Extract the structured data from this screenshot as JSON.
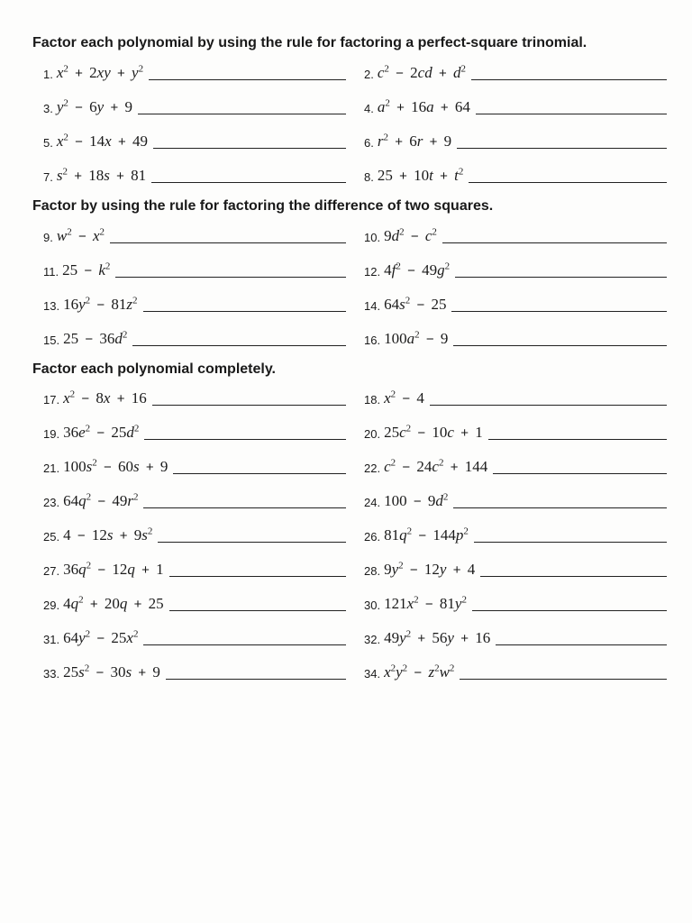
{
  "sections": [
    {
      "heading": "Factor each polynomial by using the rule for factoring a perfect-square trinomial.",
      "problems": [
        {
          "n": "1.",
          "html": "x<sup>2</sup> <span class='op'>+</span> <span class='num'>2</span>xy <span class='op'>+</span> y<sup>2</sup>"
        },
        {
          "n": "2.",
          "html": "c<sup>2</sup> <span class='op'>−</span> <span class='num'>2</span>cd <span class='op'>+</span> d<sup>2</sup>"
        },
        {
          "n": "3.",
          "html": "y<sup>2</sup> <span class='op'>−</span> <span class='num'>6</span>y <span class='op'>+</span> <span class='num'>9</span>"
        },
        {
          "n": "4.",
          "html": "a<sup>2</sup> <span class='op'>+</span> <span class='num'>16</span>a <span class='op'>+</span> <span class='num'>64</span>"
        },
        {
          "n": "5.",
          "html": "x<sup>2</sup> <span class='op'>−</span> <span class='num'>14</span>x <span class='op'>+</span> <span class='num'>49</span>"
        },
        {
          "n": "6.",
          "html": "r<sup>2</sup> <span class='op'>+</span> <span class='num'>6</span>r <span class='op'>+</span> <span class='num'>9</span>"
        },
        {
          "n": "7.",
          "html": "s<sup>2</sup> <span class='op'>+</span> <span class='num'>18</span>s <span class='op'>+</span> <span class='num'>81</span>"
        },
        {
          "n": "8.",
          "html": "<span class='num'>25</span> <span class='op'>+</span> <span class='num'>10</span>t <span class='op'>+</span> t<sup>2</sup>"
        }
      ]
    },
    {
      "heading": "Factor by using the rule for factoring the difference of two squares.",
      "problems": [
        {
          "n": "9.",
          "html": "w<sup>2</sup> <span class='op'>−</span> x<sup>2</sup>"
        },
        {
          "n": "10.",
          "html": "<span class='num'>9</span>d<sup>2</sup> <span class='op'>−</span> c<sup>2</sup>"
        },
        {
          "n": "11.",
          "html": "<span class='num'>25</span> <span class='op'>−</span> k<sup>2</sup>"
        },
        {
          "n": "12.",
          "html": "<span class='num'>4</span>f<sup>2</sup> <span class='op'>−</span> <span class='num'>49</span>g<sup>2</sup>"
        },
        {
          "n": "13.",
          "html": "<span class='num'>16</span>y<sup>2</sup> <span class='op'>−</span> <span class='num'>81</span>z<sup>2</sup>"
        },
        {
          "n": "14.",
          "html": "<span class='num'>64</span>s<sup>2</sup> <span class='op'>−</span> <span class='num'>25</span>"
        },
        {
          "n": "15.",
          "html": "<span class='num'>25</span> <span class='op'>−</span> <span class='num'>36</span>d<sup>2</sup>"
        },
        {
          "n": "16.",
          "html": "<span class='num'>100</span>a<sup>2</sup> <span class='op'>−</span> <span class='num'>9</span>"
        }
      ]
    },
    {
      "heading": "Factor each polynomial completely.",
      "problems": [
        {
          "n": "17.",
          "html": "x<sup>2</sup> <span class='op'>−</span> <span class='num'>8</span>x <span class='op'>+</span> <span class='num'>16</span>"
        },
        {
          "n": "18.",
          "html": "x<sup>2</sup> <span class='op'>−</span> <span class='num'>4</span>"
        },
        {
          "n": "19.",
          "html": "<span class='num'>36</span>e<sup>2</sup> <span class='op'>−</span> <span class='num'>25</span>d<sup>2</sup>"
        },
        {
          "n": "20.",
          "html": "<span class='num'>25</span>c<sup>2</sup> <span class='op'>−</span> <span class='num'>10</span>c <span class='op'>+</span> <span class='num'>1</span>"
        },
        {
          "n": "21.",
          "html": "<span class='num'>100</span>s<sup>2</sup> <span class='op'>−</span> <span class='num'>60</span>s <span class='op'>+</span> <span class='num'>9</span>"
        },
        {
          "n": "22.",
          "html": "c<sup>2</sup> <span class='op'>−</span> <span class='num'>24</span>c<sup>2</sup> <span class='op'>+</span> <span class='num'>144</span>"
        },
        {
          "n": "23.",
          "html": "<span class='num'>64</span>q<sup>2</sup> <span class='op'>−</span> <span class='num'>49</span>r<sup>2</sup>"
        },
        {
          "n": "24.",
          "html": "<span class='num'>100</span> <span class='op'>−</span> <span class='num'>9</span>d<sup>2</sup>"
        },
        {
          "n": "25.",
          "html": "<span class='num'>4</span> <span class='op'>−</span> <span class='num'>12</span>s <span class='op'>+</span> <span class='num'>9</span>s<sup>2</sup>"
        },
        {
          "n": "26.",
          "html": "<span class='num'>81</span>q<sup>2</sup> <span class='op'>−</span> <span class='num'>144</span>p<sup>2</sup>"
        },
        {
          "n": "27.",
          "html": "<span class='num'>36</span>q<sup>2</sup> <span class='op'>−</span> <span class='num'>12</span>q <span class='op'>+</span> <span class='num'>1</span>"
        },
        {
          "n": "28.",
          "html": "<span class='num'>9</span>y<sup>2</sup> <span class='op'>−</span> <span class='num'>12</span>y <span class='op'>+</span> <span class='num'>4</span>"
        },
        {
          "n": "29.",
          "html": "<span class='num'>4</span>q<sup>2</sup> <span class='op'>+</span> <span class='num'>20</span>q <span class='op'>+</span> <span class='num'>25</span>"
        },
        {
          "n": "30.",
          "html": "<span class='num'>121</span>x<sup>2</sup> <span class='op'>−</span> <span class='num'>81</span>y<sup>2</sup>"
        },
        {
          "n": "31.",
          "html": "<span class='num'>64</span>y<sup>2</sup> <span class='op'>−</span> <span class='num'>25</span>x<sup>2</sup>"
        },
        {
          "n": "32.",
          "html": "<span class='num'>49</span>y<sup>2</sup> <span class='op'>+</span> <span class='num'>56</span>y <span class='op'>+</span> <span class='num'>16</span>"
        },
        {
          "n": "33.",
          "html": "<span class='num'>25</span>s<sup>2</sup> <span class='op'>−</span> <span class='num'>30</span>s <span class='op'>+</span> <span class='num'>9</span>"
        },
        {
          "n": "34.",
          "html": "x<sup>2</sup>y<sup>2</sup> <span class='op'>−</span> z<sup>2</sup>w<sup>2</sup>"
        }
      ]
    }
  ]
}
